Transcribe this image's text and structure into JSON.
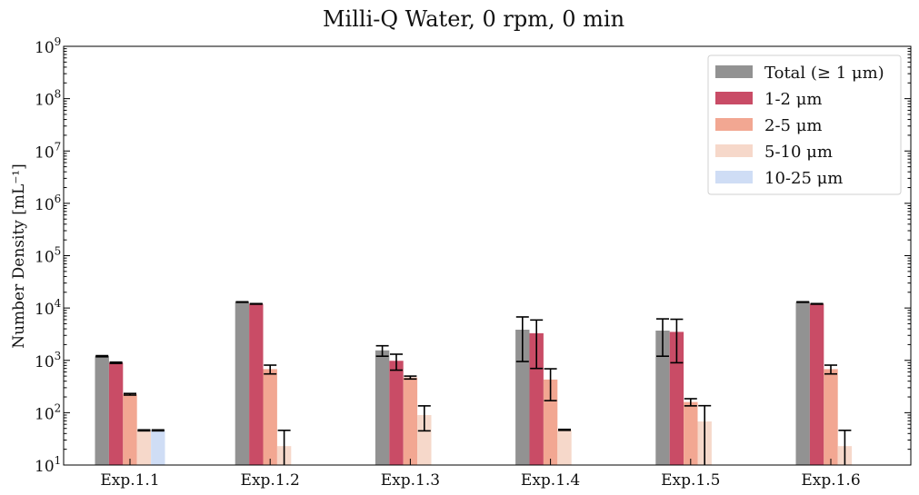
{
  "chart_data": {
    "type": "bar",
    "title": "Milli-Q Water, 0 rpm, 0 min",
    "ylabel": "Number Density [mL⁻¹]",
    "xlabel": "",
    "yscale": "log",
    "ylim": [
      10,
      1000000000
    ],
    "ytick_exponents": [
      "1",
      "2",
      "3",
      "4",
      "5",
      "6",
      "7",
      "8",
      "9"
    ],
    "ytick_base": "10",
    "categories": [
      "Exp.1.1",
      "Exp.1.2",
      "Exp.1.3",
      "Exp.1.4",
      "Exp.1.5",
      "Exp.1.6"
    ],
    "legend_position": "top-right",
    "grid": false,
    "series": [
      {
        "name": "Total (≥ 1 μm)",
        "color": "#929292",
        "values": [
          1200,
          13000,
          1550,
          3850,
          3700,
          13000
        ],
        "errors": [
          30,
          150,
          350,
          2900,
          2500,
          150
        ]
      },
      {
        "name": "1-2 μm",
        "color": "#c94c66",
        "values": [
          900,
          12000,
          980,
          3300,
          3500,
          12000
        ],
        "errors": [
          25,
          150,
          330,
          2600,
          2600,
          150
        ]
      },
      {
        "name": "2-5 μm",
        "color": "#f2a792",
        "values": [
          225,
          680,
          470,
          430,
          160,
          680
        ],
        "errors": [
          8,
          130,
          30,
          260,
          25,
          130
        ]
      },
      {
        "name": "5-10 μm",
        "color": "#f6d8ca",
        "values": [
          46,
          23,
          90,
          47,
          68,
          23
        ],
        "errors": [
          1,
          23,
          45,
          1,
          68,
          23
        ]
      },
      {
        "name": "10-25 μm",
        "color": "#cfddf5",
        "values": [
          46,
          null,
          null,
          null,
          null,
          null
        ],
        "errors": [
          1,
          null,
          null,
          null,
          null,
          null
        ]
      }
    ]
  }
}
